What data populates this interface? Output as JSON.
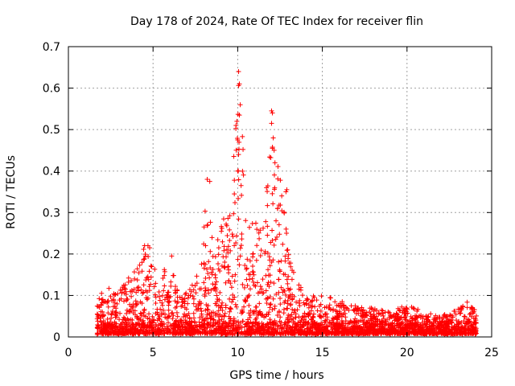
{
  "chart_data": {
    "type": "scatter",
    "title": "Day 178 of 2024, Rate Of TEC Index for receiver flin",
    "xlabel": "GPS time / hours",
    "ylabel": "ROTI / TECUs",
    "xlim": [
      0,
      25
    ],
    "ylim": [
      0,
      0.7
    ],
    "xticks": [
      "0",
      "5",
      "10",
      "15",
      "20",
      "25"
    ],
    "yticks": [
      "0",
      "0.1",
      "0.2",
      "0.3",
      "0.4",
      "0.5",
      "0.6",
      "0.7"
    ],
    "grid": true,
    "marker": "plus",
    "color": "#ff0000",
    "x_range_observed": [
      1.7,
      24.1
    ],
    "envelope": [
      [
        1.7,
        0.09
      ],
      [
        2.0,
        0.11
      ],
      [
        2.5,
        0.13
      ],
      [
        3.0,
        0.11
      ],
      [
        3.5,
        0.14
      ],
      [
        4.0,
        0.17
      ],
      [
        4.5,
        0.22
      ],
      [
        5.0,
        0.17
      ],
      [
        5.5,
        0.15
      ],
      [
        6.0,
        0.19
      ],
      [
        6.5,
        0.1
      ],
      [
        7.0,
        0.11
      ],
      [
        7.5,
        0.14
      ],
      [
        8.0,
        0.28
      ],
      [
        8.2,
        0.38
      ],
      [
        8.5,
        0.25
      ],
      [
        9.0,
        0.27
      ],
      [
        9.5,
        0.33
      ],
      [
        9.9,
        0.52
      ],
      [
        10.1,
        0.64
      ],
      [
        10.5,
        0.3
      ],
      [
        11.0,
        0.28
      ],
      [
        11.5,
        0.29
      ],
      [
        12.0,
        0.54
      ],
      [
        12.3,
        0.45
      ],
      [
        12.8,
        0.35
      ],
      [
        13.0,
        0.2
      ],
      [
        13.5,
        0.13
      ],
      [
        14.0,
        0.11
      ],
      [
        15.0,
        0.1
      ],
      [
        16.0,
        0.09
      ],
      [
        17.0,
        0.08
      ],
      [
        18.0,
        0.07
      ],
      [
        19.0,
        0.06
      ],
      [
        20.0,
        0.08
      ],
      [
        21.0,
        0.06
      ],
      [
        22.0,
        0.05
      ],
      [
        23.0,
        0.07
      ],
      [
        23.8,
        0.09
      ],
      [
        24.1,
        0.06
      ]
    ],
    "outliers": [
      [
        10.05,
        0.64
      ],
      [
        10.1,
        0.61
      ],
      [
        10.15,
        0.56
      ],
      [
        10.1,
        0.535
      ],
      [
        9.9,
        0.51
      ],
      [
        9.95,
        0.52
      ],
      [
        10.0,
        0.475
      ],
      [
        10.05,
        0.44
      ],
      [
        10.0,
        0.4
      ],
      [
        10.2,
        0.365
      ],
      [
        12.0,
        0.545
      ],
      [
        12.05,
        0.54
      ],
      [
        12.0,
        0.515
      ],
      [
        12.1,
        0.48
      ],
      [
        12.05,
        0.455
      ],
      [
        12.15,
        0.45
      ],
      [
        12.2,
        0.42
      ],
      [
        8.2,
        0.38
      ],
      [
        8.35,
        0.375
      ],
      [
        11.7,
        0.36
      ],
      [
        12.85,
        0.35
      ],
      [
        12.9,
        0.355
      ],
      [
        12.6,
        0.34
      ],
      [
        9.8,
        0.345
      ],
      [
        4.5,
        0.22
      ],
      [
        4.7,
        0.22
      ],
      [
        4.8,
        0.215
      ],
      [
        6.1,
        0.195
      ]
    ]
  }
}
